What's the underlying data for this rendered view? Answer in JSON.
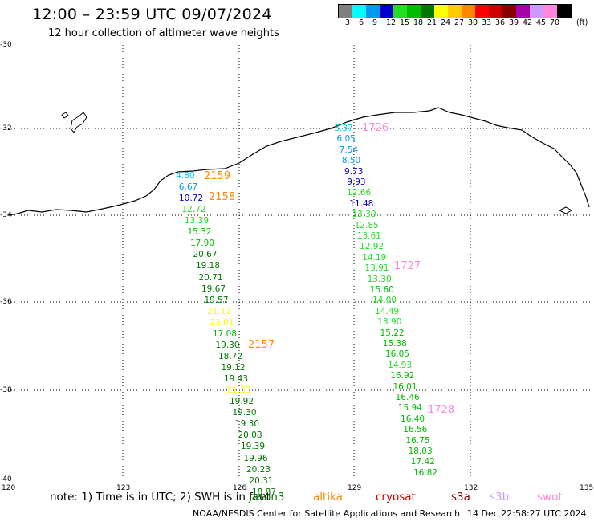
{
  "header": {
    "title": "12:00 – 23:59 UTC 09/07/2024",
    "subtitle": "12 hour collection of altimeter wave heights"
  },
  "legend": {
    "unit": "(ft)",
    "bins": [
      {
        "label": "3",
        "color": "#7f7f7f"
      },
      {
        "label": "6",
        "color": "#00ffff"
      },
      {
        "label": "9",
        "color": "#0099ee"
      },
      {
        "label": "12",
        "color": "#0000cc"
      },
      {
        "label": "15",
        "color": "#22dd22"
      },
      {
        "label": "18",
        "color": "#00bb00"
      },
      {
        "label": "21",
        "color": "#007700"
      },
      {
        "label": "24",
        "color": "#ffff00"
      },
      {
        "label": "27",
        "color": "#ffcc00"
      },
      {
        "label": "30",
        "color": "#ff8800"
      },
      {
        "label": "33",
        "color": "#ff0000"
      },
      {
        "label": "36",
        "color": "#cc0000"
      },
      {
        "label": "39",
        "color": "#880000"
      },
      {
        "label": "42",
        "color": "#aa00aa"
      },
      {
        "label": "45",
        "color": "#cc99ff"
      },
      {
        "label": "70",
        "color": "#ff88dd"
      },
      {
        "label": "",
        "color": "#000000"
      }
    ]
  },
  "axes": {
    "lat_labels": [
      "-30",
      "-32",
      "-34",
      "-36",
      "-38",
      "-40"
    ],
    "lon_labels": [
      "120",
      "123",
      "126",
      "129",
      "132",
      "135"
    ]
  },
  "passes": [
    {
      "label": "1726",
      "color": "#ff88dd"
    },
    {
      "label": "1727",
      "color": "#ff88dd"
    },
    {
      "label": "1728",
      "color": "#ff88dd"
    },
    {
      "label": "2159",
      "color": "#ff8800"
    },
    {
      "label": "2158",
      "color": "#ff8800"
    },
    {
      "label": "2157",
      "color": "#ff8800"
    }
  ],
  "track_a": [
    {
      "v": "4.80",
      "c": "#00ccee"
    },
    {
      "v": "6.67",
      "c": "#0099ee"
    },
    {
      "v": "10.72",
      "c": "#0000cc"
    },
    {
      "v": "12.72",
      "c": "#22dd22"
    },
    {
      "v": "13.39",
      "c": "#22dd22"
    },
    {
      "v": "15.32",
      "c": "#00bb00"
    },
    {
      "v": "17.90",
      "c": "#00bb00"
    },
    {
      "v": "20.67",
      "c": "#007700"
    },
    {
      "v": "19.18",
      "c": "#007700"
    },
    {
      "v": "20.71",
      "c": "#007700"
    },
    {
      "v": "19.67",
      "c": "#007700"
    },
    {
      "v": "19.57",
      "c": "#007700"
    },
    {
      "v": "21.11",
      "c": "#ffff00"
    },
    {
      "v": "23.01",
      "c": "#ffff00"
    },
    {
      "v": "17.08",
      "c": "#00bb00"
    },
    {
      "v": "19.30",
      "c": "#007700"
    },
    {
      "v": "18.72",
      "c": "#007700"
    },
    {
      "v": "19.12",
      "c": "#007700"
    },
    {
      "v": "19.43",
      "c": "#007700"
    },
    {
      "v": "21.33",
      "c": "#ffff00"
    },
    {
      "v": "19.92",
      "c": "#007700"
    },
    {
      "v": "19.30",
      "c": "#007700"
    },
    {
      "v": "19.30",
      "c": "#007700"
    },
    {
      "v": "20.08",
      "c": "#007700"
    },
    {
      "v": "19.39",
      "c": "#007700"
    },
    {
      "v": "19.96",
      "c": "#007700"
    },
    {
      "v": "20.23",
      "c": "#007700"
    },
    {
      "v": "20.31",
      "c": "#007700"
    },
    {
      "v": "18.87",
      "c": "#007700"
    }
  ],
  "track_b": [
    {
      "v": "3.37",
      "c": "#00ccee"
    },
    {
      "v": "6.05",
      "c": "#0099ee"
    },
    {
      "v": "7.54",
      "c": "#0099ee"
    },
    {
      "v": "8.50",
      "c": "#0099ee"
    },
    {
      "v": "9.73",
      "c": "#0000cc"
    },
    {
      "v": "9.93",
      "c": "#0000cc"
    },
    {
      "v": "12.66",
      "c": "#22dd22"
    },
    {
      "v": "11.48",
      "c": "#0000cc"
    },
    {
      "v": "13.30",
      "c": "#22dd22"
    },
    {
      "v": "12.85",
      "c": "#22dd22"
    },
    {
      "v": "13.61",
      "c": "#22dd22"
    },
    {
      "v": "12.92",
      "c": "#22dd22"
    },
    {
      "v": "14.19",
      "c": "#22dd22"
    },
    {
      "v": "13.91",
      "c": "#22dd22"
    },
    {
      "v": "13.30",
      "c": "#22dd22"
    },
    {
      "v": "15.60",
      "c": "#00bb00"
    },
    {
      "v": "14.00",
      "c": "#22dd22"
    },
    {
      "v": "14.49",
      "c": "#22dd22"
    },
    {
      "v": "13.90",
      "c": "#22dd22"
    },
    {
      "v": "15.22",
      "c": "#00bb00"
    },
    {
      "v": "15.38",
      "c": "#00bb00"
    },
    {
      "v": "16.05",
      "c": "#00bb00"
    },
    {
      "v": "14.93",
      "c": "#22dd22"
    },
    {
      "v": "16.92",
      "c": "#00bb00"
    },
    {
      "v": "16.01",
      "c": "#00bb00"
    },
    {
      "v": "16.46",
      "c": "#00bb00"
    },
    {
      "v": "15.94",
      "c": "#00bb00"
    },
    {
      "v": "16.40",
      "c": "#00bb00"
    },
    {
      "v": "16.56",
      "c": "#00bb00"
    },
    {
      "v": "16.75",
      "c": "#00bb00"
    },
    {
      "v": "18.03",
      "c": "#00bb00"
    },
    {
      "v": "17.42",
      "c": "#00bb00"
    },
    {
      "v": "16.82",
      "c": "#00bb00"
    }
  ],
  "footer": {
    "note": "note: 1) Time is in UTC; 2) SWH is in feet",
    "satellites": [
      {
        "name": "jason3",
        "color": "#007700"
      },
      {
        "name": "altika",
        "color": "#ff8800"
      },
      {
        "name": "cryosat",
        "color": "#cc0000"
      },
      {
        "name": "s3a",
        "color": "#880000"
      },
      {
        "name": "s3b",
        "color": "#cc99ff"
      },
      {
        "name": "swot",
        "color": "#ff88dd"
      }
    ],
    "credit": "NOAA/NESDIS Center for Satellite Applications and Research",
    "timestamp": "14 Dec 22:58:27 UTC 2024"
  }
}
